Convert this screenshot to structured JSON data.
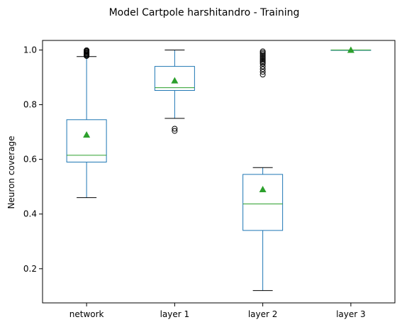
{
  "chart_data": {
    "type": "box",
    "title": "Model Cartpole harshitandro - Training",
    "xlabel": "",
    "ylabel": "Neuron coverage",
    "ylim": [
      0.075,
      1.035
    ],
    "yticks": [
      0.2,
      0.4,
      0.6,
      0.8,
      1.0
    ],
    "ytick_labels": [
      "0.2",
      "0.4",
      "0.6",
      "0.8",
      "1.0"
    ],
    "grid": false,
    "colors": {
      "box": "#1f77b4",
      "median": "#2ca02c",
      "mean": "#2ca02c",
      "whisker": "#000000",
      "flier": "#000000"
    },
    "series": [
      {
        "label": "network",
        "q1": 0.59,
        "median": 0.615,
        "q3": 0.745,
        "whisker_low": 0.46,
        "whisker_high": 0.976,
        "mean": 0.69,
        "fliers": [
          0.978,
          0.981,
          0.984,
          0.987,
          0.99,
          0.993,
          0.996,
          0.999
        ]
      },
      {
        "label": "layer 1",
        "q1": 0.852,
        "median": 0.862,
        "q3": 0.94,
        "whisker_low": 0.75,
        "whisker_high": 1.0,
        "mean": 0.888,
        "fliers": [
          0.704,
          0.712
        ]
      },
      {
        "label": "layer 2",
        "q1": 0.34,
        "median": 0.437,
        "q3": 0.545,
        "whisker_low": 0.12,
        "whisker_high": 0.57,
        "mean": 0.49,
        "fliers": [
          0.91,
          0.92,
          0.93,
          0.94,
          0.95,
          0.955,
          0.96,
          0.965,
          0.97,
          0.975,
          0.98,
          0.985,
          0.99,
          0.995
        ]
      },
      {
        "label": "layer 3",
        "q1": 1.0,
        "median": 1.0,
        "q3": 1.0,
        "whisker_low": 1.0,
        "whisker_high": 1.0,
        "mean": 1.0,
        "fliers": []
      }
    ]
  }
}
